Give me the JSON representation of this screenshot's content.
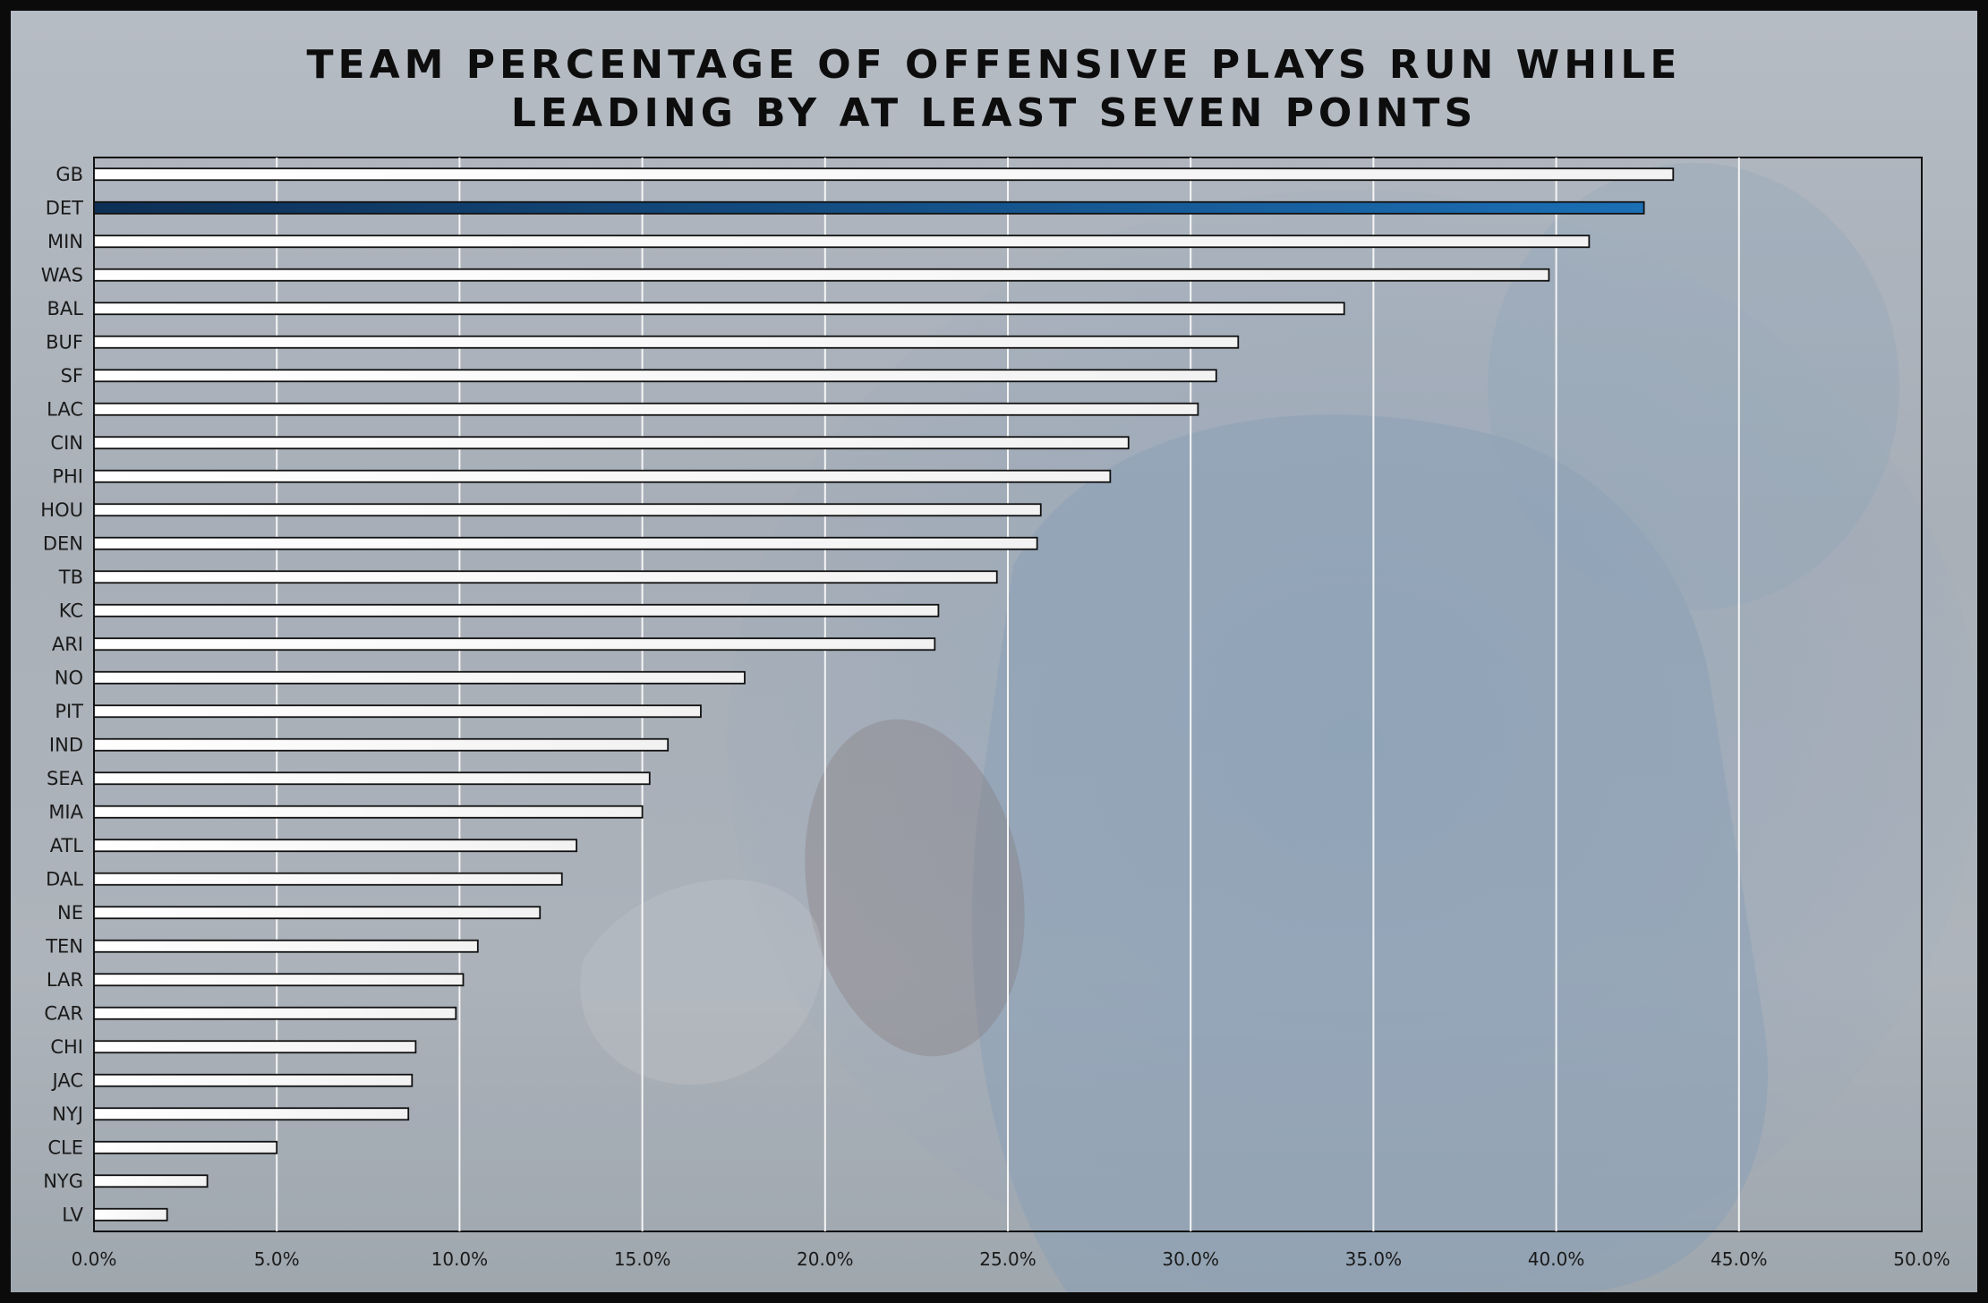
{
  "chart_data": {
    "type": "bar",
    "orientation": "horizontal",
    "title_lines": [
      "TEAM PERCENTAGE OF OFFENSIVE PLAYS RUN WHILE",
      "LEADING BY AT LEAST SEVEN POINTS"
    ],
    "xlabel": "",
    "ylabel": "",
    "xlim": [
      0,
      50
    ],
    "x_tick_values": [
      0,
      5,
      10,
      15,
      20,
      25,
      30,
      35,
      40,
      45,
      50
    ],
    "x_tick_labels": [
      "0.0%",
      "5.0%",
      "10.0%",
      "15.0%",
      "20.0%",
      "25.0%",
      "30.0%",
      "35.0%",
      "40.0%",
      "45.0%",
      "50.0%"
    ],
    "grid": "vertical",
    "legend": "none",
    "highlight_category": "DET",
    "categories": [
      "GB",
      "DET",
      "MIN",
      "WAS",
      "BAL",
      "BUF",
      "SF",
      "LAC",
      "CIN",
      "PHI",
      "HOU",
      "DEN",
      "TB",
      "KC",
      "ARI",
      "NO",
      "PIT",
      "IND",
      "SEA",
      "MIA",
      "ATL",
      "DAL",
      "NE",
      "TEN",
      "LAR",
      "CAR",
      "CHI",
      "JAC",
      "NYJ",
      "CLE",
      "NYG",
      "LV"
    ],
    "values": [
      43.2,
      42.4,
      40.9,
      39.8,
      34.2,
      31.3,
      30.7,
      30.2,
      28.3,
      27.8,
      25.9,
      25.8,
      24.7,
      23.1,
      23.0,
      17.8,
      16.6,
      15.7,
      15.2,
      15.0,
      13.2,
      12.8,
      12.2,
      10.5,
      10.1,
      9.9,
      8.8,
      8.7,
      8.6,
      5.0,
      3.1,
      2.0
    ],
    "colors": {
      "bar_fill": "#f2f2f2",
      "bar_stroke": "#111111",
      "highlight_fill": "#1b6fb5",
      "grid": "#f5f5f5"
    }
  }
}
